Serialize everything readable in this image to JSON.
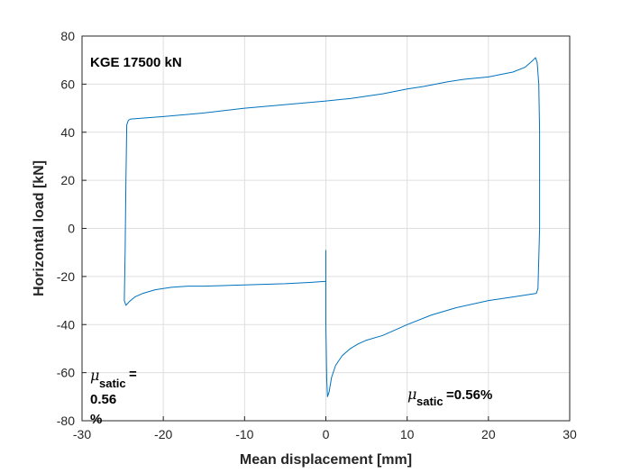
{
  "chart_data": {
    "type": "line",
    "title": "",
    "xlabel": "Mean displacement [mm]",
    "ylabel": "Horizontal load [kN]",
    "xlim": [
      -30,
      30
    ],
    "ylim": [
      -80,
      80
    ],
    "xticks": [
      -30,
      -20,
      -10,
      0,
      10,
      20,
      30
    ],
    "yticks": [
      -80,
      -60,
      -40,
      -20,
      0,
      20,
      40,
      60,
      80
    ],
    "grid": true,
    "series": [
      {
        "name": "KGE 17500 kN",
        "color": "#0072BD",
        "x": [
          0,
          0,
          0.1,
          0.2,
          0.4,
          0.7,
          1.2,
          2,
          3,
          4,
          5,
          7,
          10,
          13,
          16,
          20,
          23,
          25.9,
          26.1,
          26.3,
          26.3,
          26.2,
          26.0,
          25.8,
          25.5,
          24.5,
          23,
          20,
          17,
          15,
          12,
          10,
          7,
          5,
          3,
          0,
          -5,
          -10,
          -15,
          -20,
          -24,
          -24.3,
          -24.5,
          -24.6,
          -24.7,
          -24.8,
          -24.6,
          -24.2,
          -23.5,
          -22.5,
          -21,
          -19,
          -17,
          -15,
          -10,
          -5,
          -2,
          0
        ],
        "y": [
          -9,
          -40,
          -62,
          -70,
          -68,
          -62,
          -57,
          -53,
          -50,
          -48,
          -46.5,
          -44.5,
          -40,
          -36,
          -33,
          -30,
          -28.5,
          -27,
          -25,
          0,
          40,
          60,
          69,
          71,
          70,
          67,
          65,
          63,
          62,
          61,
          59,
          58,
          56,
          55,
          54,
          53,
          51.5,
          50,
          48,
          46.5,
          45.5,
          45,
          43,
          20,
          -10,
          -30,
          -32,
          -30.5,
          -28.5,
          -27,
          -25.5,
          -24.5,
          -24,
          -24,
          -23.5,
          -23,
          -22.5,
          -22
        ]
      }
    ],
    "annotations": [
      {
        "text": "KGE 17500 kN"
      },
      {
        "symbol": "μ",
        "sub": "satic",
        "text": "=0.56%"
      },
      {
        "symbol": "μ",
        "sub": "satic",
        "line1": "=",
        "line2": "0.56",
        "line3": "%"
      }
    ]
  }
}
